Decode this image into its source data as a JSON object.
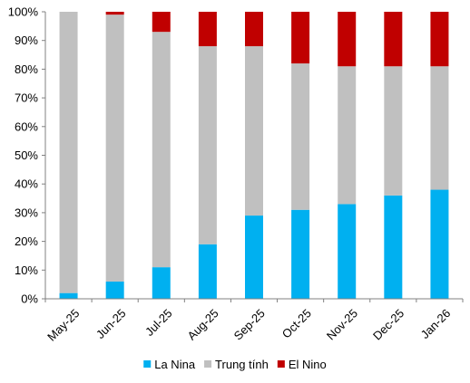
{
  "chart_data": {
    "type": "bar",
    "stacked": true,
    "percent": true,
    "categories": [
      "May-25",
      "Jun-25",
      "Jul-25",
      "Aug-25",
      "Sep-25",
      "Oct-25",
      "Nov-25",
      "Dec-25",
      "Jan-26"
    ],
    "series": [
      {
        "name": "La Nina",
        "color": "#00B0F0",
        "values": [
          2,
          6,
          11,
          19,
          29,
          31,
          33,
          36,
          38
        ]
      },
      {
        "name": "Trung tính",
        "color": "#C0C0C0",
        "values": [
          98,
          93,
          82,
          69,
          59,
          51,
          48,
          45,
          43
        ]
      },
      {
        "name": "El Nino",
        "color": "#C00000",
        "values": [
          0,
          1,
          7,
          12,
          12,
          18,
          19,
          19,
          19
        ]
      }
    ],
    "ylim": [
      0,
      100
    ],
    "yticks": [
      "0%",
      "10%",
      "20%",
      "30%",
      "40%",
      "50%",
      "60%",
      "70%",
      "80%",
      "90%",
      "100%"
    ],
    "grid": false,
    "legend_position": "bottom"
  }
}
